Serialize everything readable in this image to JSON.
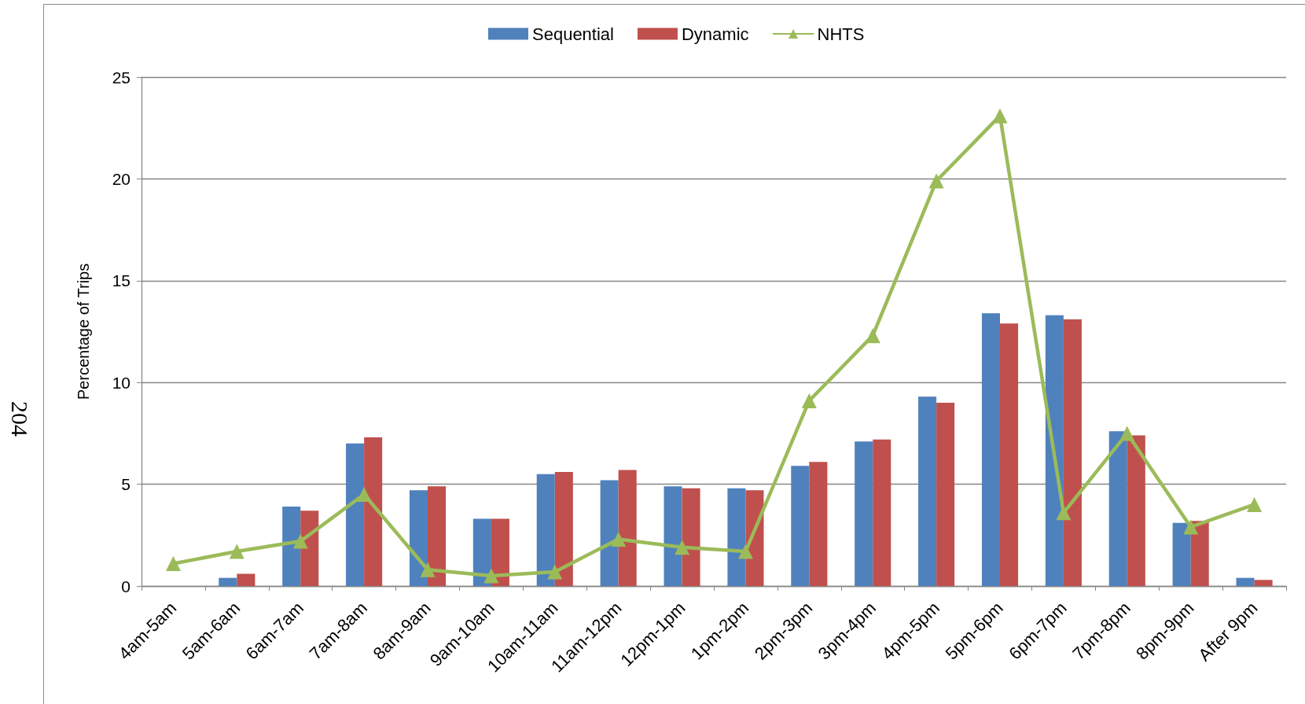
{
  "chart_data": {
    "type": "bar",
    "ylabel": "Percentage of Trips",
    "categories": [
      "4am-5am",
      "5am-6am",
      "6am-7am",
      "7am-8am",
      "8am-9am",
      "9am-10am",
      "10am-11am",
      "11am-12pm",
      "12pm-1pm",
      "1pm-2pm",
      "2pm-3pm",
      "3pm-4pm",
      "4pm-5pm",
      "5pm-6pm",
      "6pm-7pm",
      "7pm-8pm",
      "8pm-9pm",
      "After 9pm"
    ],
    "series": [
      {
        "name": "Sequential",
        "color": "#4f81bd",
        "values": [
          0,
          0.4,
          3.9,
          7.0,
          4.7,
          3.3,
          5.5,
          5.2,
          4.9,
          4.8,
          5.9,
          7.1,
          9.3,
          13.4,
          13.3,
          7.6,
          3.1,
          0.4
        ]
      },
      {
        "name": "Dynamic",
        "color": "#c0504d",
        "values": [
          0,
          0.6,
          3.7,
          7.3,
          4.9,
          3.3,
          5.6,
          5.7,
          4.8,
          4.7,
          6.1,
          7.2,
          9.0,
          12.9,
          13.1,
          7.4,
          3.2,
          0.3
        ]
      },
      {
        "name": "NHTS",
        "type": "line",
        "color": "#9bbb59",
        "values": [
          1.1,
          1.7,
          2.2,
          4.5,
          0.8,
          0.5,
          0.7,
          2.3,
          1.9,
          1.7,
          9.1,
          12.3,
          19.9,
          23.1,
          3.6,
          7.5,
          2.9,
          4.0
        ]
      }
    ],
    "ylim": [
      0,
      25
    ],
    "yticks": [
      0,
      5,
      10,
      15,
      20,
      25
    ],
    "grid": "y",
    "legend": "top",
    "marker": "triangle",
    "annotations": [
      "204"
    ]
  }
}
